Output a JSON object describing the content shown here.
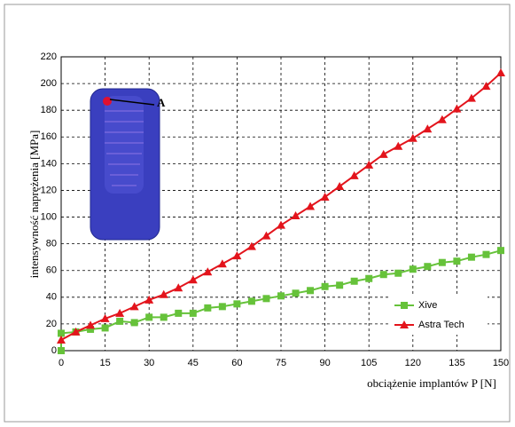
{
  "chart_data": {
    "type": "line",
    "xlabel": "obciążenie implantów P [N]",
    "ylabel": "intensywność naprężenia [MPa]",
    "annotation": "A",
    "xlim": [
      0,
      150
    ],
    "ylim": [
      0,
      220
    ],
    "xticks": [
      0,
      15,
      30,
      45,
      60,
      75,
      90,
      105,
      120,
      135,
      150
    ],
    "yticks": [
      0,
      20,
      40,
      60,
      80,
      100,
      120,
      140,
      160,
      180,
      200,
      220
    ],
    "grid": true,
    "legend": "lower right",
    "series": [
      {
        "name": "Xive",
        "color": "#66c23a",
        "marker": "square",
        "x": [
          0,
          0,
          5,
          10,
          15,
          20,
          25,
          30,
          35,
          40,
          45,
          50,
          55,
          60,
          65,
          70,
          75,
          80,
          85,
          90,
          95,
          100,
          105,
          110,
          115,
          120,
          125,
          130,
          135,
          140,
          145,
          150
        ],
        "values": [
          0,
          13,
          14,
          16,
          17,
          22,
          21,
          25,
          25,
          28,
          28,
          32,
          33,
          35,
          37,
          39,
          41,
          43,
          45,
          48,
          49,
          52,
          54,
          57,
          58,
          61,
          63,
          66,
          67,
          70,
          72,
          75
        ]
      },
      {
        "name": "Astra Tech",
        "color": "#e3141c",
        "marker": "triangle",
        "x": [
          0,
          5,
          10,
          15,
          20,
          25,
          30,
          35,
          40,
          45,
          50,
          55,
          60,
          65,
          70,
          75,
          80,
          85,
          90,
          95,
          100,
          105,
          110,
          115,
          120,
          125,
          130,
          135,
          140,
          145,
          150
        ],
        "values": [
          8,
          14,
          19,
          24,
          28,
          33,
          38,
          42,
          47,
          53,
          59,
          65,
          71,
          78,
          86,
          94,
          101,
          108,
          115,
          123,
          131,
          139,
          147,
          153,
          159,
          166,
          173,
          181,
          189,
          198,
          208
        ]
      }
    ]
  }
}
